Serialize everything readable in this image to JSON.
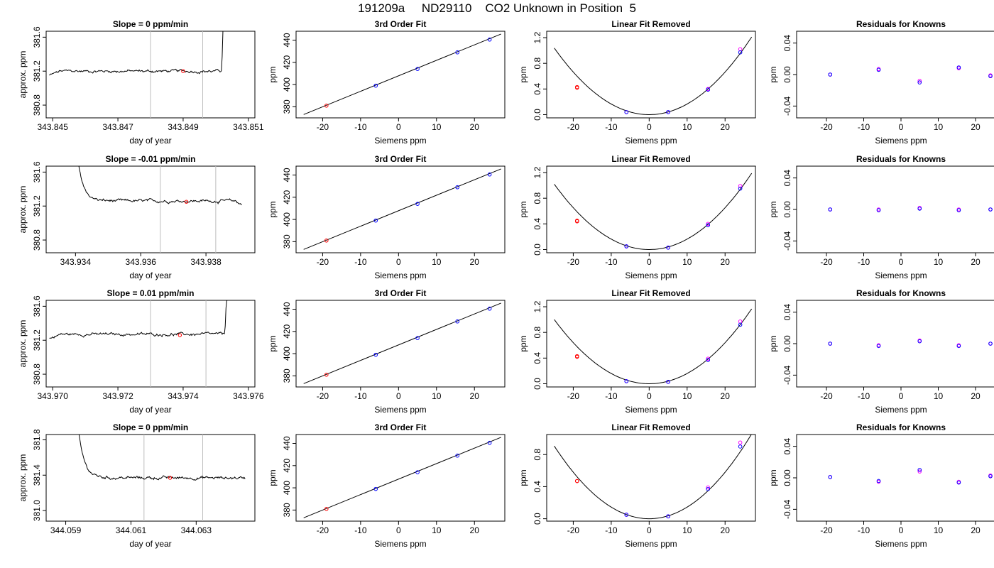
{
  "page_title": "191209a     ND29110    CO2 Unknown in Position  5",
  "colors": {
    "line": "#000000",
    "marker_blue": "#0000ff",
    "marker_magenta": "#ff00ff",
    "marker_red": "#ff0000",
    "vline": "#bebebe"
  },
  "chart_data": [
    {
      "type": "line",
      "row": 0,
      "col": 0,
      "title": "Slope =  0  ppm/min",
      "xlabel": "day of year",
      "ylabel": "approx. ppm",
      "xlim": [
        343.8448,
        343.8512
      ],
      "ylim": [
        380.65,
        381.67
      ],
      "xticks": [
        343.845,
        343.847,
        343.849,
        343.851
      ],
      "xtick_labels": [
        "343.845",
        "343.847",
        "343.849",
        "343.851"
      ],
      "yticks": [
        380.8,
        381.2,
        381.6
      ],
      "ytick_labels": [
        "380.8",
        "381.2",
        "381.6"
      ],
      "series_x_range": [
        343.8449,
        343.8505
      ],
      "baseline": 381.2,
      "trace_start": [
        343.8449,
        381.15
      ],
      "trace_end": {
        "type": "spike",
        "x": 343.8502,
        "y": 381.68
      },
      "vlines": [
        343.848,
        343.8496
      ],
      "marker": {
        "x": 343.849,
        "y": 381.2
      }
    },
    {
      "type": "line",
      "row": 0,
      "col": 1,
      "title": "3rd Order Fit",
      "xlabel": "Siemens ppm",
      "ylabel": "ppm",
      "xlim": [
        -27,
        28
      ],
      "ylim": [
        370,
        448
      ],
      "xticks": [
        -20,
        -10,
        0,
        10,
        20
      ],
      "xtick_labels": [
        "-20",
        "-10",
        "0",
        "10",
        "20"
      ],
      "yticks": [
        380,
        400,
        420,
        440
      ],
      "ytick_labels": [
        "380",
        "400",
        "420",
        "440"
      ],
      "line": [
        [
          -25,
          373.0
        ],
        [
          27,
          445.5
        ]
      ],
      "points": {
        "x": [
          -19,
          -6,
          5,
          15.5,
          24
        ],
        "y": [
          381,
          399,
          414,
          429,
          440.5
        ]
      }
    },
    {
      "type": "scatter",
      "row": 0,
      "col": 2,
      "title": "Linear Fit Removed",
      "xlabel": "Siemens ppm",
      "ylabel": "ppm",
      "xlim": [
        -27,
        28
      ],
      "ylim": [
        -0.05,
        1.3
      ],
      "xticks": [
        -20,
        -10,
        0,
        10,
        20
      ],
      "xtick_labels": [
        "-20",
        "-10",
        "0",
        "10",
        "20"
      ],
      "yticks": [
        0.0,
        0.4,
        0.8,
        1.2
      ],
      "ytick_labels": [
        "0.0",
        "0.4",
        "0.8",
        "1.2"
      ],
      "curve_x_range": [
        -25,
        27
      ],
      "curve_vertex": [
        0,
        0
      ],
      "curve_coef": 0.00166,
      "points": {
        "x": [
          -19,
          -6,
          5,
          15.5,
          24
        ],
        "y_fit": [
          0.43,
          0.04,
          0.04,
          0.39,
          0.97
        ],
        "y_obs": [
          0.42,
          0.04,
          0.04,
          0.4,
          1.02
        ]
      }
    },
    {
      "type": "scatter",
      "row": 0,
      "col": 3,
      "title": "Residuals for Knowns",
      "xlabel": "Siemens ppm",
      "ylabel": "ppm",
      "xlim": [
        -28,
        28
      ],
      "ylim": [
        -0.055,
        0.055
      ],
      "xticks": [
        -20,
        -10,
        0,
        10,
        20
      ],
      "xtick_labels": [
        "-20",
        "-10",
        "0",
        "10",
        "20"
      ],
      "yticks": [
        -0.04,
        0.0,
        0.04
      ],
      "ytick_labels": [
        "-0.04",
        "0.00",
        "0.04"
      ],
      "points": {
        "x": [
          -19,
          -6,
          5,
          15.5,
          24
        ],
        "y_a": [
          0.0,
          0.006,
          -0.01,
          0.009,
          -0.002
        ],
        "y_b": [
          0.0,
          0.007,
          -0.008,
          0.008,
          -0.001
        ]
      }
    },
    {
      "type": "line",
      "row": 1,
      "col": 0,
      "title": "Slope =  -0.01  ppm/min",
      "xlabel": "day of year",
      "ylabel": "approx. ppm",
      "xlim": [
        343.9331,
        343.9395
      ],
      "ylim": [
        380.65,
        381.67
      ],
      "xticks": [
        343.934,
        343.936,
        343.938
      ],
      "xtick_labels": [
        "343.934",
        "343.936",
        "343.938"
      ],
      "yticks": [
        380.8,
        381.2,
        381.6
      ],
      "ytick_labels": [
        "380.8",
        "381.2",
        "381.6"
      ],
      "series_x_range": [
        343.9341,
        343.9391
      ],
      "baseline": 381.26,
      "trace_start": [
        343.9341,
        381.68
      ],
      "trace_end": {
        "type": "dip",
        "x": 343.9391,
        "y": 381.22
      },
      "vlines": [
        343.9366,
        343.9383
      ],
      "marker": {
        "x": 343.9374,
        "y": 381.25
      }
    },
    {
      "type": "line",
      "row": 1,
      "col": 1,
      "title": "3rd Order Fit",
      "xlabel": "Siemens ppm",
      "ylabel": "ppm",
      "xlim": [
        -27,
        28
      ],
      "ylim": [
        370,
        448
      ],
      "xticks": [
        -20,
        -10,
        0,
        10,
        20
      ],
      "xtick_labels": [
        "-20",
        "-10",
        "0",
        "10",
        "20"
      ],
      "yticks": [
        380,
        400,
        420,
        440
      ],
      "ytick_labels": [
        "380",
        "400",
        "420",
        "440"
      ],
      "line": [
        [
          -25,
          373.0
        ],
        [
          27,
          445.5
        ]
      ],
      "points": {
        "x": [
          -19,
          -6,
          5,
          15.5,
          24
        ],
        "y": [
          381,
          399,
          414,
          429,
          440.5
        ]
      }
    },
    {
      "type": "scatter",
      "row": 1,
      "col": 2,
      "title": "Linear Fit Removed",
      "xlabel": "Siemens ppm",
      "ylabel": "ppm",
      "xlim": [
        -27,
        28
      ],
      "ylim": [
        -0.05,
        1.3
      ],
      "xticks": [
        -20,
        -10,
        0,
        10,
        20
      ],
      "xtick_labels": [
        "-20",
        "-10",
        "0",
        "10",
        "20"
      ],
      "yticks": [
        0.0,
        0.4,
        0.8,
        1.2
      ],
      "ytick_labels": [
        "0.0",
        "0.4",
        "0.8",
        "1.2"
      ],
      "curve_x_range": [
        -25,
        27
      ],
      "curve_vertex": [
        0,
        0
      ],
      "curve_coef": 0.00163,
      "points": {
        "x": [
          -19,
          -6,
          5,
          15.5,
          24
        ],
        "y_fit": [
          0.44,
          0.05,
          0.03,
          0.38,
          0.95
        ],
        "y_obs": [
          0.45,
          0.05,
          0.03,
          0.4,
          0.99
        ]
      }
    },
    {
      "type": "scatter",
      "row": 1,
      "col": 3,
      "title": "Residuals for Knowns",
      "xlabel": "Siemens ppm",
      "ylabel": "ppm",
      "xlim": [
        -28,
        28
      ],
      "ylim": [
        -0.055,
        0.055
      ],
      "xticks": [
        -20,
        -10,
        0,
        10,
        20
      ],
      "xtick_labels": [
        "-20",
        "-10",
        "0",
        "10",
        "20"
      ],
      "yticks": [
        -0.04,
        0.0,
        0.04
      ],
      "ytick_labels": [
        "-0.04",
        "0.00",
        "0.04"
      ],
      "points": {
        "x": [
          -19,
          -6,
          5,
          15.5,
          24
        ],
        "y_a": [
          0.0,
          -0.001,
          0.001,
          -0.001,
          0.0
        ],
        "y_b": [
          0.0,
          0.0,
          0.002,
          0.0,
          0.0
        ]
      }
    },
    {
      "type": "line",
      "row": 2,
      "col": 0,
      "title": "Slope =  0.01  ppm/min",
      "xlabel": "day of year",
      "ylabel": "approx. ppm",
      "xlim": [
        343.9698,
        343.9762
      ],
      "ylim": [
        380.65,
        381.67
      ],
      "xticks": [
        343.97,
        343.972,
        343.974,
        343.976
      ],
      "xtick_labels": [
        "343.970",
        "343.972",
        "343.974",
        "343.976"
      ],
      "yticks": [
        380.8,
        381.2,
        381.6
      ],
      "ytick_labels": [
        "380.8",
        "381.2",
        "381.6"
      ],
      "series_x_range": [
        343.9699,
        343.9755
      ],
      "baseline": 381.27,
      "trace_start": [
        343.9699,
        381.22
      ],
      "trace_end": {
        "type": "spike",
        "x": 343.9753,
        "y": 381.68
      },
      "vlines": [
        343.973,
        343.9747
      ],
      "marker": {
        "x": 343.9739,
        "y": 381.26
      }
    },
    {
      "type": "line",
      "row": 2,
      "col": 1,
      "title": "3rd Order Fit",
      "xlabel": "Siemens ppm",
      "ylabel": "ppm",
      "xlim": [
        -27,
        28
      ],
      "ylim": [
        370,
        448
      ],
      "xticks": [
        -20,
        -10,
        0,
        10,
        20
      ],
      "xtick_labels": [
        "-20",
        "-10",
        "0",
        "10",
        "20"
      ],
      "yticks": [
        380,
        400,
        420,
        440
      ],
      "ytick_labels": [
        "380",
        "400",
        "420",
        "440"
      ],
      "line": [
        [
          -25,
          373.0
        ],
        [
          27,
          445.5
        ]
      ],
      "points": {
        "x": [
          -19,
          -6,
          5,
          15.5,
          24
        ],
        "y": [
          381,
          399,
          414,
          429,
          440.5
        ]
      }
    },
    {
      "type": "scatter",
      "row": 2,
      "col": 2,
      "title": "Linear Fit Removed",
      "xlabel": "Siemens ppm",
      "ylabel": "ppm",
      "xlim": [
        -27,
        28
      ],
      "ylim": [
        -0.05,
        1.3
      ],
      "xticks": [
        -20,
        -10,
        0,
        10,
        20
      ],
      "xtick_labels": [
        "-20",
        "-10",
        "0",
        "10",
        "20"
      ],
      "yticks": [
        0.0,
        0.4,
        0.8,
        1.2
      ],
      "ytick_labels": [
        "0.0",
        "0.4",
        "0.8",
        "1.2"
      ],
      "curve_x_range": [
        -25,
        27
      ],
      "curve_vertex": [
        0,
        0
      ],
      "curve_coef": 0.0016,
      "points": {
        "x": [
          -19,
          -6,
          5,
          15.5,
          24
        ],
        "y_fit": [
          0.43,
          0.04,
          0.03,
          0.37,
          0.92
        ],
        "y_obs": [
          0.42,
          0.04,
          0.03,
          0.39,
          0.97
        ]
      }
    },
    {
      "type": "scatter",
      "row": 2,
      "col": 3,
      "title": "Residuals for Knowns",
      "xlabel": "Siemens ppm",
      "ylabel": "ppm",
      "xlim": [
        -28,
        28
      ],
      "ylim": [
        -0.055,
        0.055
      ],
      "xticks": [
        -20,
        -10,
        0,
        10,
        20
      ],
      "xtick_labels": [
        "-20",
        "-10",
        "0",
        "10",
        "20"
      ],
      "yticks": [
        -0.04,
        0.0,
        0.04
      ],
      "ytick_labels": [
        "-0.04",
        "0.00",
        "0.04"
      ],
      "points": {
        "x": [
          -19,
          -6,
          5,
          15.5,
          24
        ],
        "y_a": [
          0.0,
          -0.003,
          0.003,
          -0.003,
          0.0
        ],
        "y_b": [
          0.0,
          -0.002,
          0.004,
          -0.002,
          0.0
        ]
      }
    },
    {
      "type": "line",
      "row": 3,
      "col": 0,
      "title": "Slope =  0  ppm/min",
      "xlabel": "day of year",
      "ylabel": "approx. ppm",
      "xlim": [
        344.0584,
        344.0648
      ],
      "ylim": [
        380.88,
        381.86
      ],
      "xticks": [
        344.059,
        344.061,
        344.063
      ],
      "xtick_labels": [
        "344.059",
        "344.061",
        "344.063"
      ],
      "yticks": [
        381.0,
        381.4,
        381.8
      ],
      "ytick_labels": [
        "381.0",
        "381.4",
        "381.8"
      ],
      "series_x_range": [
        344.0594,
        344.0645
      ],
      "baseline": 381.37,
      "trace_start": [
        344.0594,
        381.87
      ],
      "trace_end": {
        "type": "flat",
        "x": 344.0645,
        "y": 381.36
      },
      "vlines": [
        344.0614,
        344.0632
      ],
      "marker": {
        "x": 344.0622,
        "y": 381.37
      }
    },
    {
      "type": "line",
      "row": 3,
      "col": 1,
      "title": "3rd Order Fit",
      "xlabel": "Siemens ppm",
      "ylabel": "ppm",
      "xlim": [
        -27,
        28
      ],
      "ylim": [
        370,
        448
      ],
      "xticks": [
        -20,
        -10,
        0,
        10,
        20
      ],
      "xtick_labels": [
        "-20",
        "-10",
        "0",
        "10",
        "20"
      ],
      "yticks": [
        380,
        400,
        420,
        440
      ],
      "ytick_labels": [
        "380",
        "400",
        "420",
        "440"
      ],
      "line": [
        [
          -25,
          373.0
        ],
        [
          27,
          445.5
        ]
      ],
      "points": {
        "x": [
          -19,
          -6,
          5,
          15.5,
          24
        ],
        "y": [
          381,
          399,
          414,
          429,
          440.5
        ]
      }
    },
    {
      "type": "scatter",
      "row": 3,
      "col": 2,
      "title": "Linear Fit Removed",
      "xlabel": "Siemens ppm",
      "ylabel": "ppm",
      "xlim": [
        -27,
        28
      ],
      "ylim": [
        -0.03,
        1.05
      ],
      "xticks": [
        -20,
        -10,
        0,
        10,
        20
      ],
      "xtick_labels": [
        "-20",
        "-10",
        "0",
        "10",
        "20"
      ],
      "yticks": [
        0.0,
        0.4,
        0.8
      ],
      "ytick_labels": [
        "0.0",
        "0.4",
        "0.8"
      ],
      "curve_x_range": [
        -25,
        27
      ],
      "curve_vertex": [
        0,
        0
      ],
      "curve_coef": 0.00145,
      "points": {
        "x": [
          -19,
          -6,
          5,
          15.5,
          24
        ],
        "y_fit": [
          0.47,
          0.05,
          0.03,
          0.37,
          0.9
        ],
        "y_obs": [
          0.47,
          0.05,
          0.03,
          0.39,
          0.95
        ]
      }
    },
    {
      "type": "scatter",
      "row": 3,
      "col": 3,
      "title": "Residuals for Knowns",
      "xlabel": "Siemens ppm",
      "ylabel": "ppm",
      "xlim": [
        -28,
        28
      ],
      "ylim": [
        -0.055,
        0.055
      ],
      "xticks": [
        -20,
        -10,
        0,
        10,
        20
      ],
      "xtick_labels": [
        "-20",
        "-10",
        "0",
        "10",
        "20"
      ],
      "yticks": [
        -0.04,
        0.0,
        0.04
      ],
      "ytick_labels": [
        "-0.04",
        "0.00",
        "0.04"
      ],
      "points": {
        "x": [
          -19,
          -6,
          5,
          15.5,
          24
        ],
        "y_a": [
          0.001,
          -0.004,
          0.01,
          -0.006,
          0.002
        ],
        "y_b": [
          0.001,
          -0.005,
          0.008,
          -0.005,
          0.003
        ]
      }
    }
  ]
}
